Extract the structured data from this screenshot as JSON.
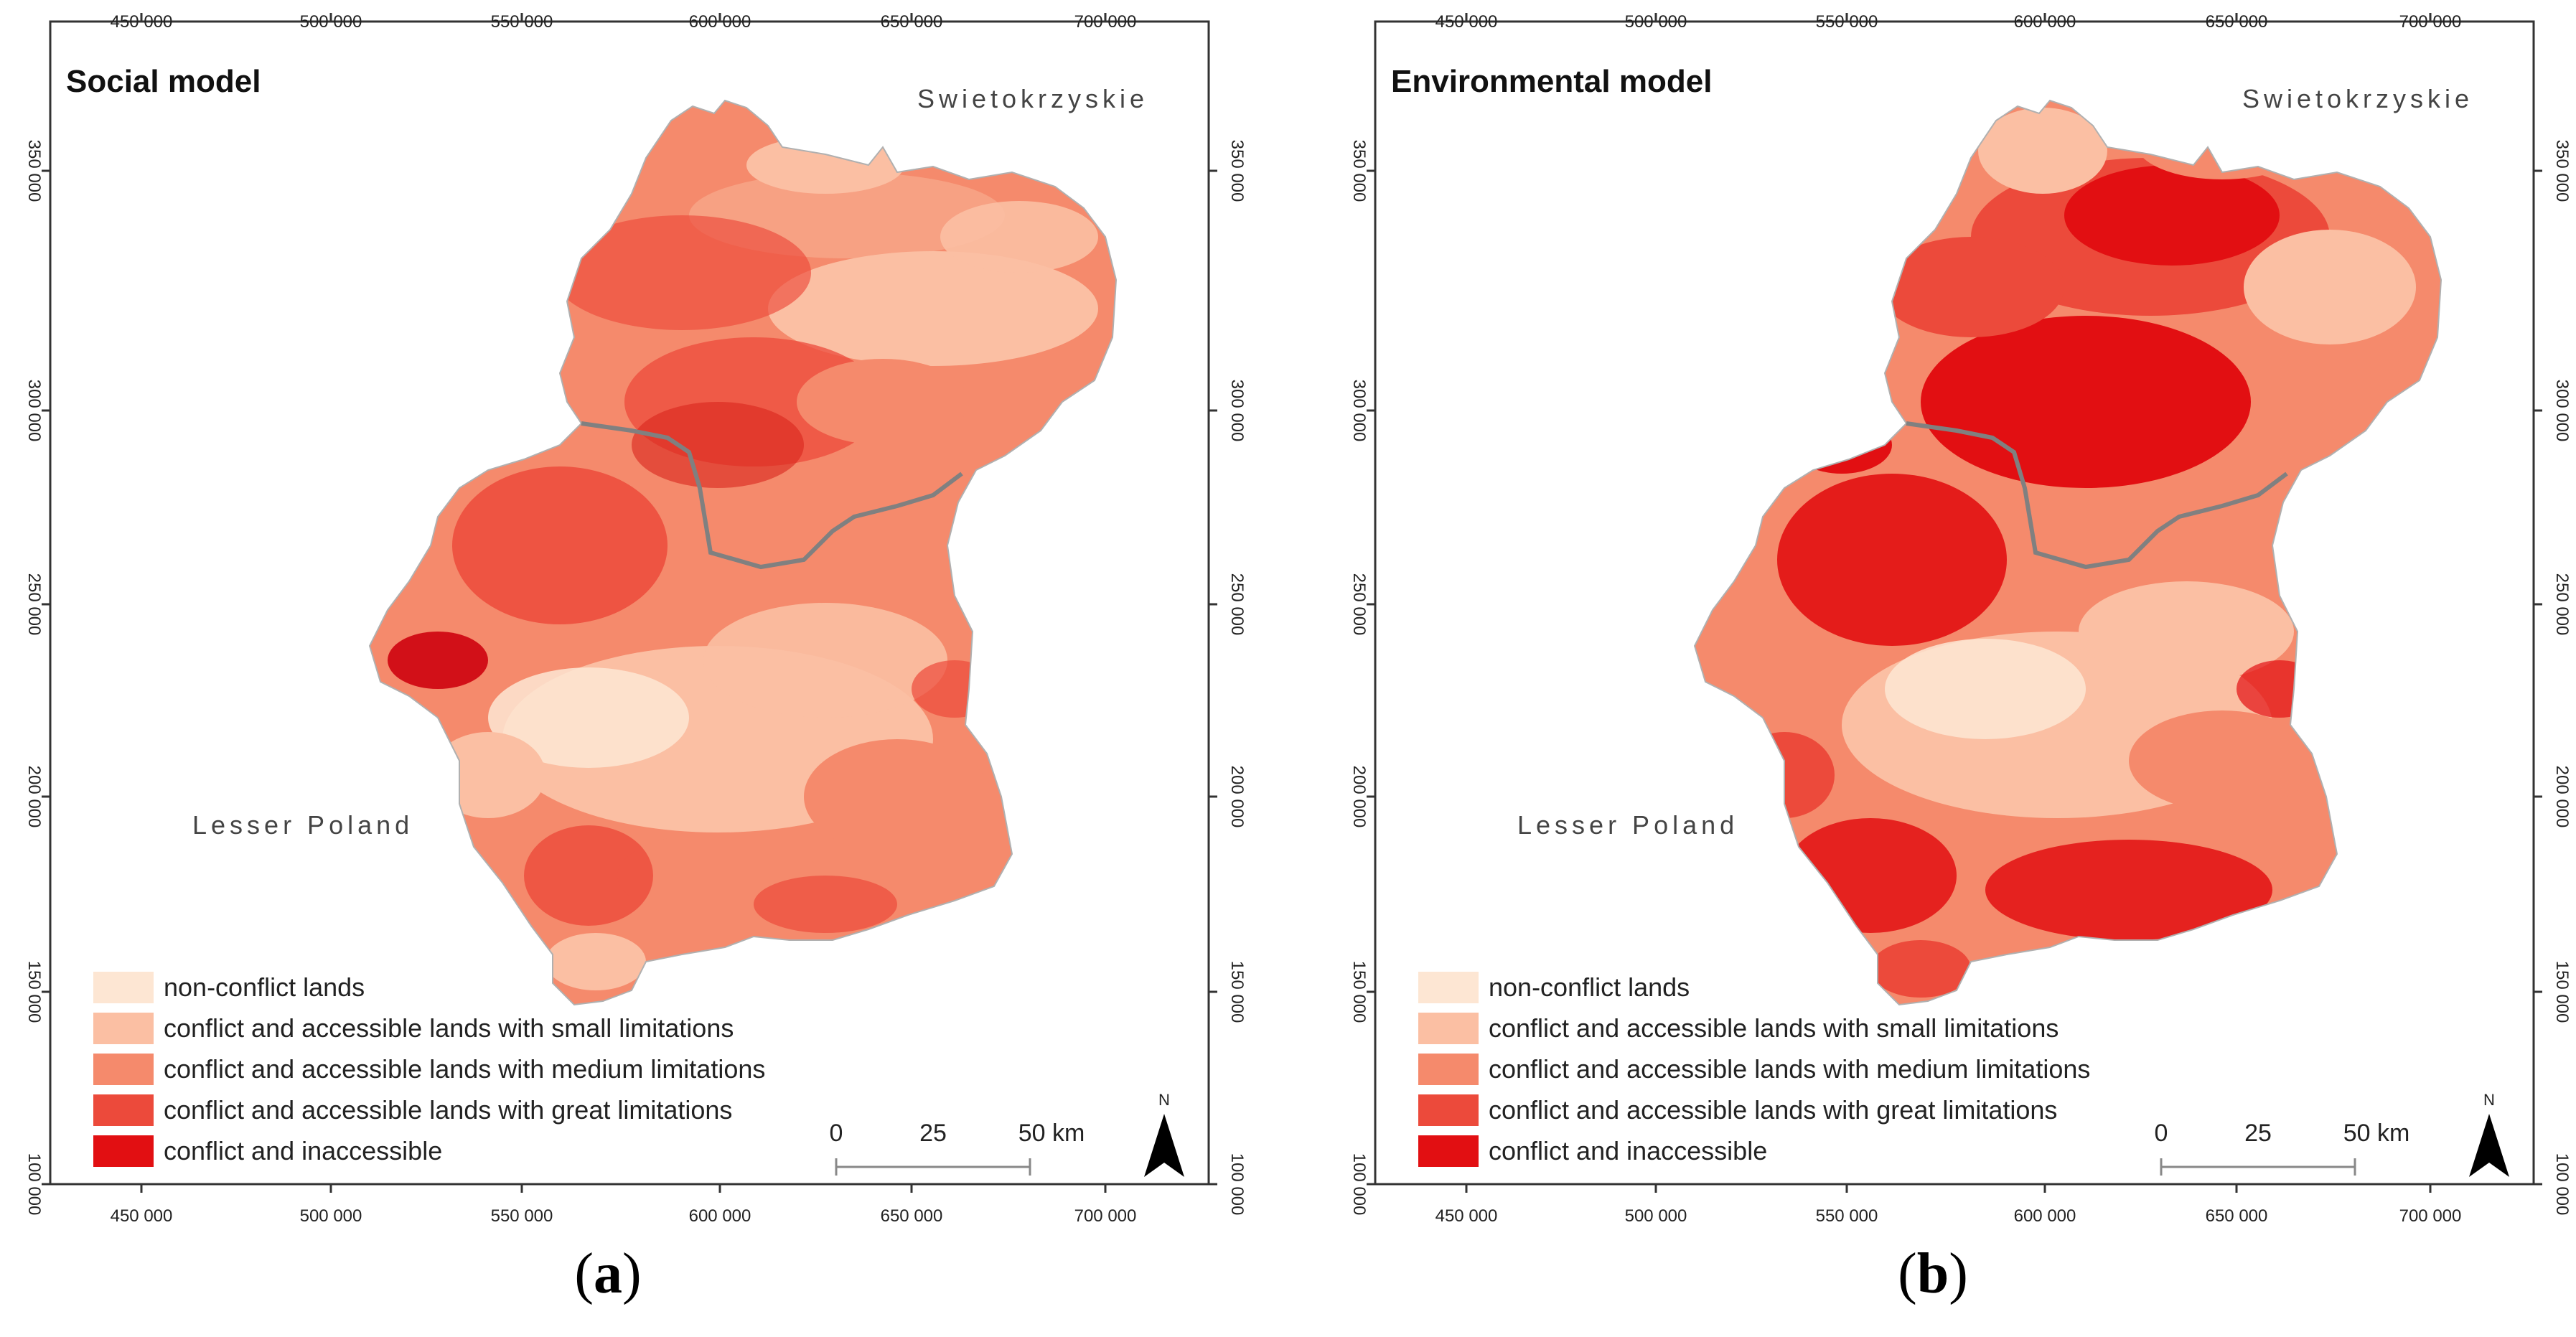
{
  "panels": [
    {
      "id": "a",
      "title": "Social model",
      "caption_open": "(",
      "caption_letter": "a",
      "caption_close": ")",
      "region_north": "Swietokrzyskie",
      "region_south": "Lesser Poland"
    },
    {
      "id": "b",
      "title": "Environmental model",
      "caption_open": "(",
      "caption_letter": "b",
      "caption_close": ")",
      "region_north": "Swietokrzyskie",
      "region_south": "Lesser Poland"
    }
  ],
  "x_ticks": [
    "450 000",
    "500 000",
    "550 000",
    "600 000",
    "650 000",
    "700 000"
  ],
  "y_ticks": [
    "350 000",
    "300 000",
    "250 000",
    "200 000",
    "150 000",
    "100 000"
  ],
  "legend": [
    {
      "label": "non-conflict lands",
      "color": "#fde6d3"
    },
    {
      "label": "conflict and accessible lands with small limitations",
      "color": "#fbbfa3"
    },
    {
      "label": "conflict and accessible lands with medium limitations",
      "color": "#f58a6c"
    },
    {
      "label": "conflict and accessible lands with great limitations",
      "color": "#ec4a3b"
    },
    {
      "label": "conflict and inaccessible",
      "color": "#e20f12"
    }
  ],
  "scale_bar": {
    "labels": [
      "0",
      "25",
      "50 km"
    ]
  },
  "north_arrow": {
    "label": "N"
  }
}
